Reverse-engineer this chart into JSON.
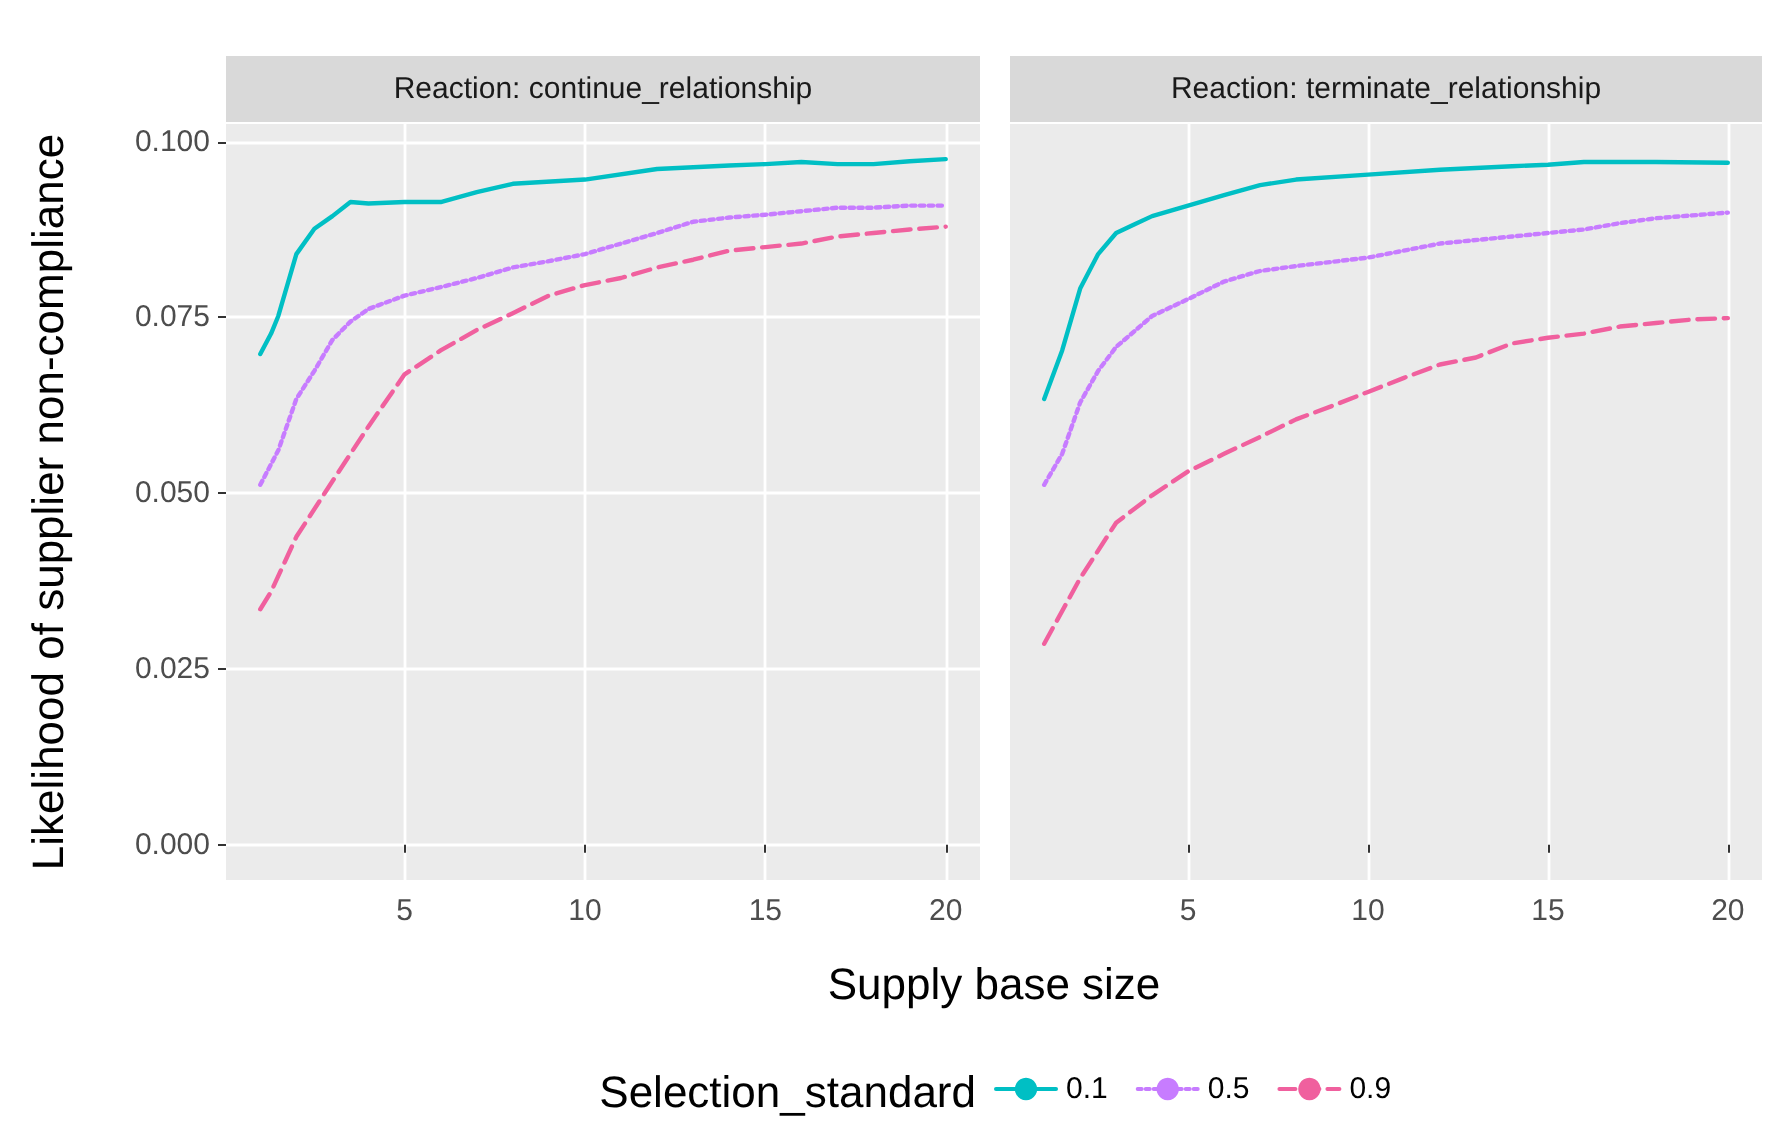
{
  "chart_data": [
    {
      "type": "line",
      "title": "Reaction: continue_relationship",
      "xlabel": "Supply base size",
      "ylabel": "Likelihood of supplier non-compliance",
      "legend_title": "Selection_standard",
      "legend": "bottom",
      "grid": true,
      "xlim": [
        0.05,
        20.95
      ],
      "xticks": [
        5,
        10,
        15,
        20
      ],
      "ylim": [
        -0.005,
        0.1025
      ],
      "yticks": [
        {
          "value": 0,
          "label": "0.000"
        },
        {
          "value": 0.025,
          "label": "0.025"
        },
        {
          "value": 0.05,
          "label": "0.050"
        },
        {
          "value": 0.075,
          "label": "0.075"
        },
        {
          "value": 0.1,
          "label": "0.100"
        }
      ],
      "series": [
        {
          "name": "0.1",
          "color": "#00bfc4",
          "line_style": "solid",
          "x": [
            1,
            1.3,
            1.5,
            2,
            2.5,
            3,
            3.5,
            4,
            5,
            6,
            7,
            8,
            10,
            12,
            14,
            15,
            16,
            17,
            18,
            19,
            20
          ],
          "values": [
            0.0698,
            0.0727,
            0.0752,
            0.084,
            0.0876,
            0.0894,
            0.0914,
            0.0912,
            0.0914,
            0.0914,
            0.0928,
            0.094,
            0.0946,
            0.0961,
            0.0966,
            0.0968,
            0.0971,
            0.0968,
            0.0968,
            0.0972,
            0.0975
          ]
        },
        {
          "name": "0.5",
          "color": "#c77cff",
          "line_style": "dotted",
          "x": [
            1,
            1.5,
            2,
            2.5,
            3,
            3.5,
            4,
            5,
            6,
            7,
            8,
            9,
            10,
            11,
            12,
            13,
            14,
            15,
            16,
            17,
            18,
            19,
            20
          ],
          "values": [
            0.0512,
            0.0561,
            0.0634,
            0.0674,
            0.0718,
            0.0744,
            0.0762,
            0.0781,
            0.0793,
            0.0806,
            0.0821,
            0.083,
            0.084,
            0.0855,
            0.087,
            0.0886,
            0.0892,
            0.0896,
            0.0901,
            0.0906,
            0.0906,
            0.0909,
            0.0909
          ]
        },
        {
          "name": "0.9",
          "color": "#f0609e",
          "line_style": "dashed",
          "x": [
            1,
            1.3,
            2,
            3,
            4,
            5,
            6,
            7,
            8,
            9,
            10,
            11,
            12,
            13,
            14,
            15,
            16,
            17,
            18,
            19,
            20
          ],
          "values": [
            0.0335,
            0.036,
            0.0438,
            0.0517,
            0.0595,
            0.0669,
            0.0703,
            0.0732,
            0.0756,
            0.0781,
            0.0796,
            0.0806,
            0.0821,
            0.0832,
            0.0845,
            0.085,
            0.0855,
            0.0865,
            0.087,
            0.0875,
            0.0879
          ]
        }
      ]
    },
    {
      "type": "line",
      "title": "Reaction: terminate_relationship",
      "grid": true,
      "tick_labels": "x",
      "xlim": [
        0.05,
        20.95
      ],
      "xticks": [
        5,
        10,
        15,
        20
      ],
      "ylim": [
        -0.005,
        0.1025
      ],
      "series": [
        {
          "color": "#00bfc4",
          "line_style": "solid",
          "x": [
            1,
            1.5,
            2,
            2.5,
            3,
            3.5,
            4,
            5,
            6,
            7,
            8,
            10,
            12,
            14,
            15,
            16,
            18,
            20
          ],
          "values": [
            0.0634,
            0.0703,
            0.0791,
            0.084,
            0.087,
            0.0882,
            0.0894,
            0.0909,
            0.0924,
            0.0938,
            0.0946,
            0.0953,
            0.096,
            0.0965,
            0.0967,
            0.0971,
            0.0971,
            0.097
          ]
        },
        {
          "color": "#c77cff",
          "line_style": "dotted",
          "x": [
            1,
            1.5,
            2,
            2.5,
            3,
            4,
            5,
            6,
            7,
            8,
            10,
            12,
            14,
            15,
            16,
            17,
            18,
            20
          ],
          "values": [
            0.0512,
            0.0556,
            0.0629,
            0.0674,
            0.0708,
            0.0752,
            0.0776,
            0.0801,
            0.0816,
            0.0823,
            0.0835,
            0.0855,
            0.0865,
            0.087,
            0.0875,
            0.0884,
            0.0891,
            0.0899
          ]
        },
        {
          "color": "#f0609e",
          "line_style": "dashed",
          "x": [
            1,
            2,
            3,
            4,
            5,
            6,
            7,
            8,
            9,
            10,
            11,
            12,
            13,
            14,
            15,
            16,
            17,
            18,
            19,
            20
          ],
          "values": [
            0.0286,
            0.0379,
            0.0458,
            0.0497,
            0.0531,
            0.0556,
            0.058,
            0.0605,
            0.0624,
            0.0644,
            0.0664,
            0.0683,
            0.0693,
            0.0713,
            0.0721,
            0.0727,
            0.0737,
            0.0742,
            0.0747,
            0.0749
          ]
        }
      ]
    }
  ]
}
